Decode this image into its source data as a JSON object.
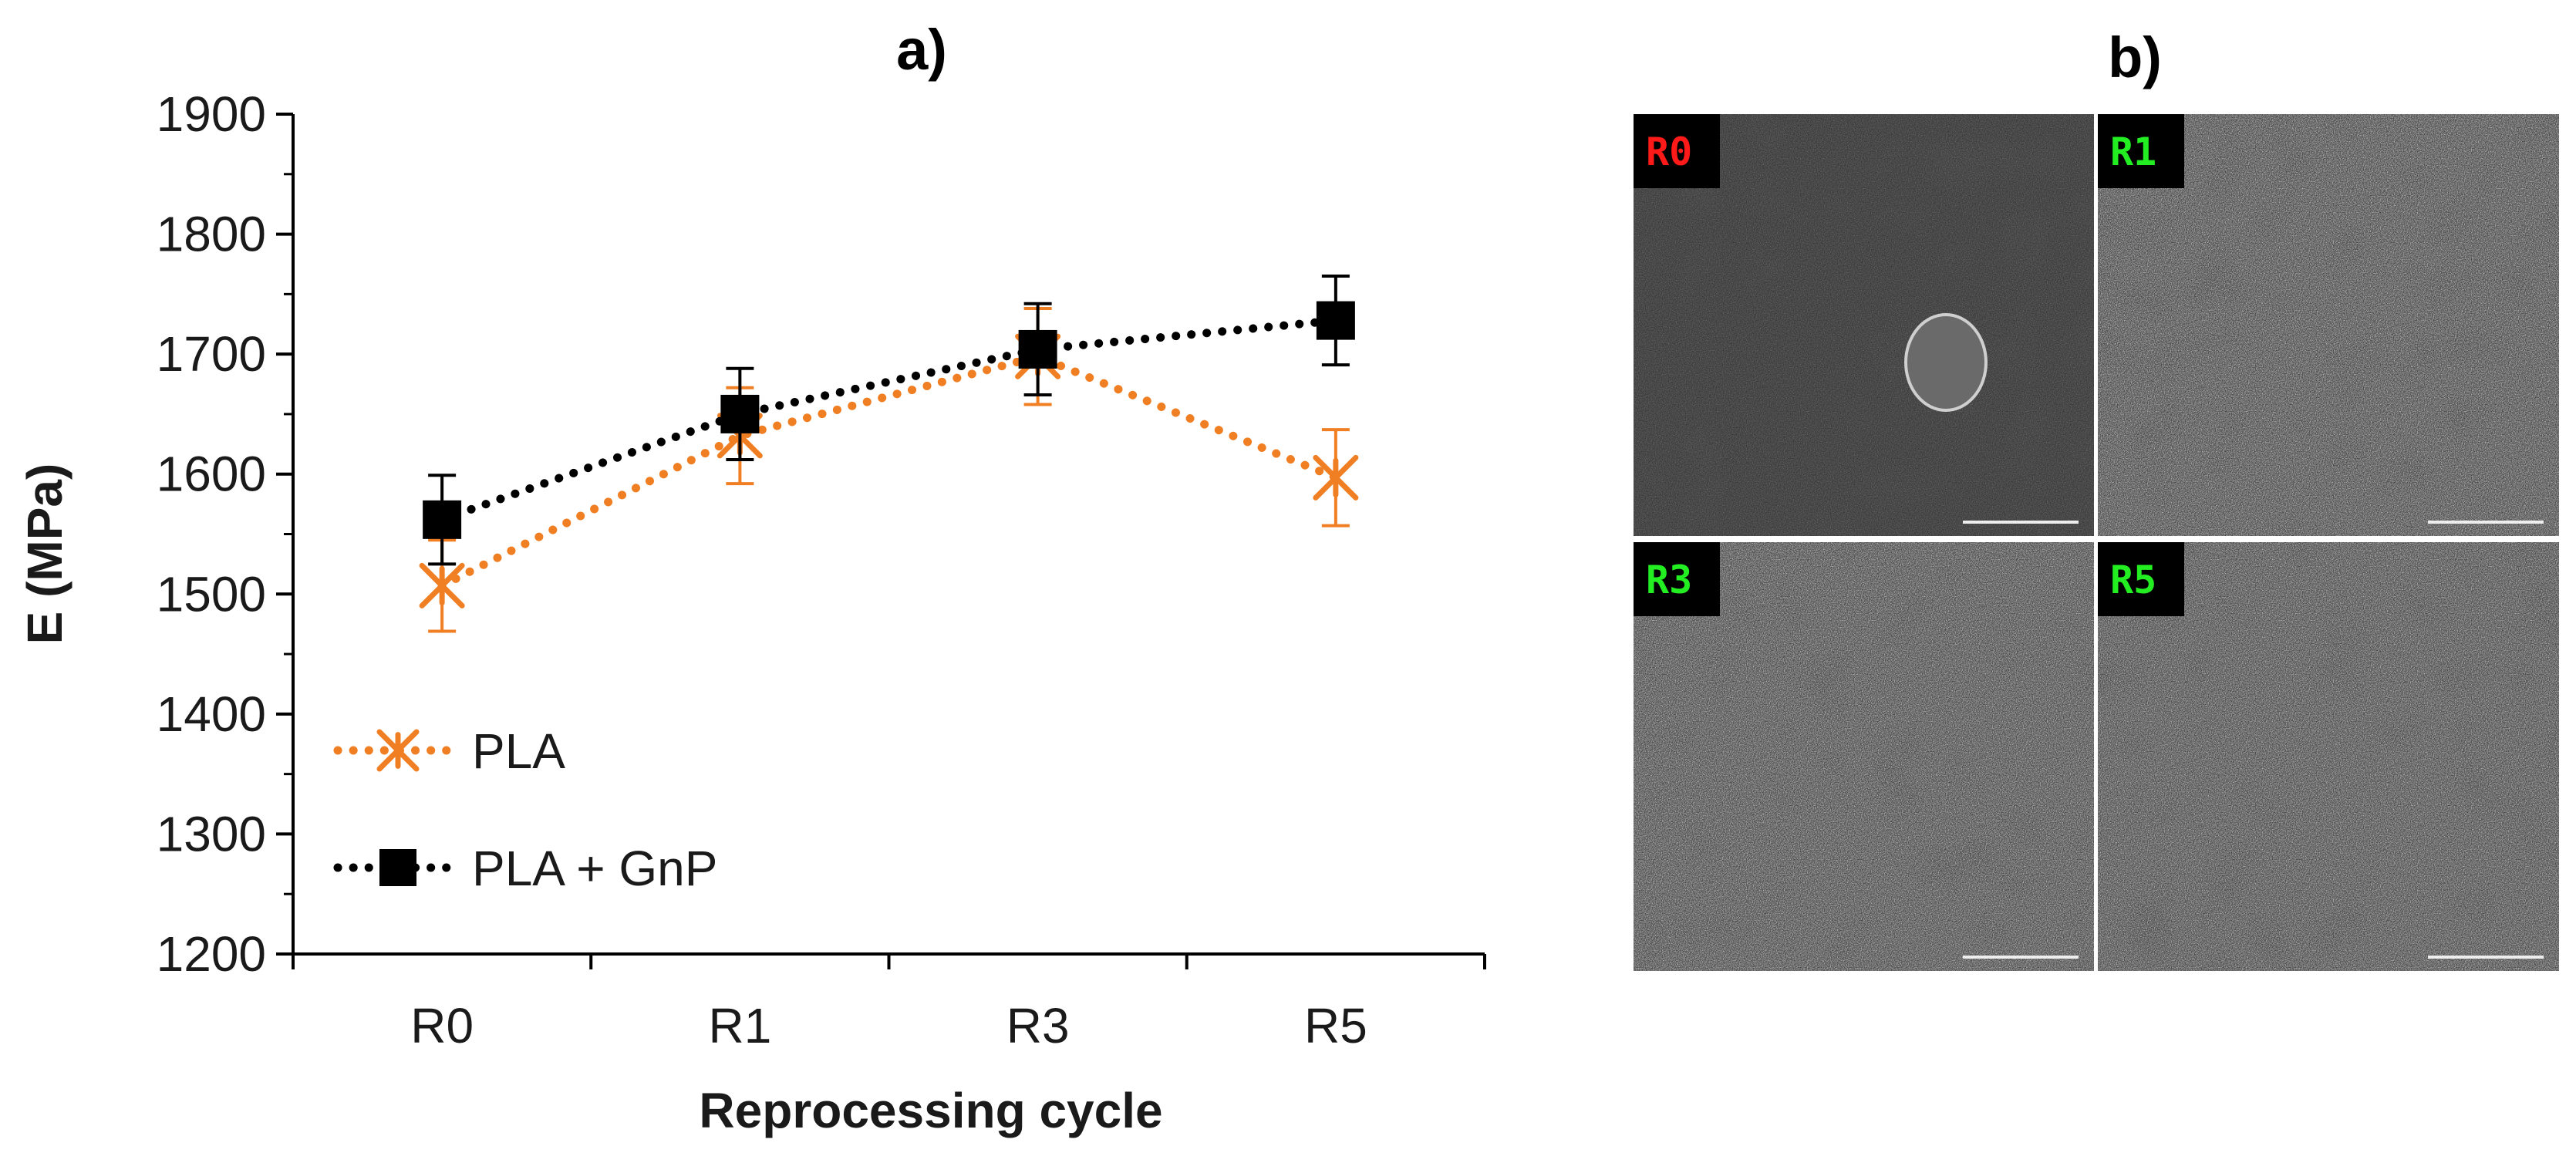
{
  "panels": {
    "a_label": "a)",
    "b_label": "b)"
  },
  "chart_data": {
    "type": "line",
    "title": "",
    "xlabel": "Reprocessing cycle",
    "ylabel": "E (MPa)",
    "categories": [
      "R0",
      "R1",
      "R3",
      "R5"
    ],
    "ylim": [
      1200,
      1900
    ],
    "yticks": [
      1200,
      1300,
      1400,
      1500,
      1600,
      1700,
      1800,
      1900
    ],
    "grid": false,
    "legend_position": "bottom-left",
    "series": [
      {
        "name": "PLA",
        "color": "#f07f24",
        "marker": "asterisk",
        "line": "dotted",
        "values": [
          1507,
          1632,
          1698,
          1597
        ],
        "errors": [
          38,
          40,
          40,
          40
        ]
      },
      {
        "name": "PLA + GnP",
        "color": "#000000",
        "marker": "square",
        "line": "dotted",
        "values": [
          1562,
          1650,
          1704,
          1728
        ],
        "errors": [
          37,
          38,
          38,
          37
        ]
      }
    ]
  },
  "sem_images": [
    {
      "label": "R0",
      "label_color": "#ff1a1a"
    },
    {
      "label": "R1",
      "label_color": "#22ee22"
    },
    {
      "label": "R3",
      "label_color": "#22ee22"
    },
    {
      "label": "R5",
      "label_color": "#22ee22"
    }
  ]
}
